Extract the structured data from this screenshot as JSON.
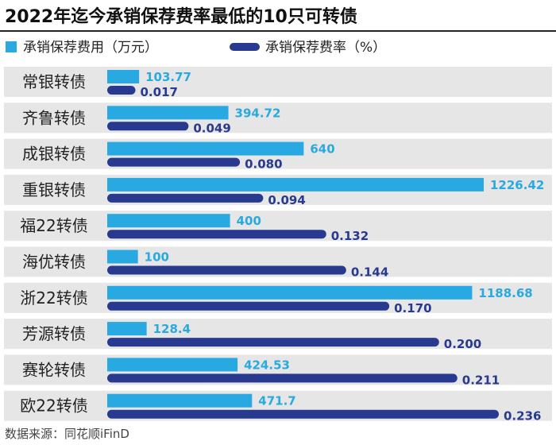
{
  "title": "2022年迄今承销保荐费率最低的10只可转债",
  "source": "数据来源：同花顺iFinD",
  "colors": {
    "fee": "#29a9e1",
    "rate": "#283a8f",
    "row_bg": "#e6e6e6",
    "title_rule": "#222222"
  },
  "chart_data": {
    "type": "bar",
    "orientation": "horizontal",
    "title": "2022年迄今承销保荐费率最低的10只可转债",
    "categories": [
      "常银转债",
      "齐鲁转债",
      "成银转债",
      "重银转债",
      "福22转债",
      "海优转债",
      "浙22转债",
      "芳源转债",
      "赛轮转债",
      "欧22转债"
    ],
    "series": [
      {
        "name": "承销保荐费用（万元）",
        "values": [
          103.77,
          394.72,
          640,
          1226.42,
          400,
          100,
          1188.68,
          128.4,
          424.53,
          471.7
        ],
        "labels": [
          "103.77",
          "394.72",
          "640",
          "1226.42",
          "400",
          "100",
          "1188.68",
          "128.4",
          "424.53",
          "471.7"
        ]
      },
      {
        "name": "承销保荐费率（%）",
        "values": [
          0.017,
          0.049,
          0.08,
          0.094,
          0.132,
          0.144,
          0.17,
          0.2,
          0.211,
          0.236
        ],
        "labels": [
          "0.017",
          "0.049",
          "0.080",
          "0.094",
          "0.132",
          "0.144",
          "0.170",
          "0.200",
          "0.211",
          "0.236"
        ]
      }
    ],
    "legend_position": "top",
    "grid": false
  }
}
